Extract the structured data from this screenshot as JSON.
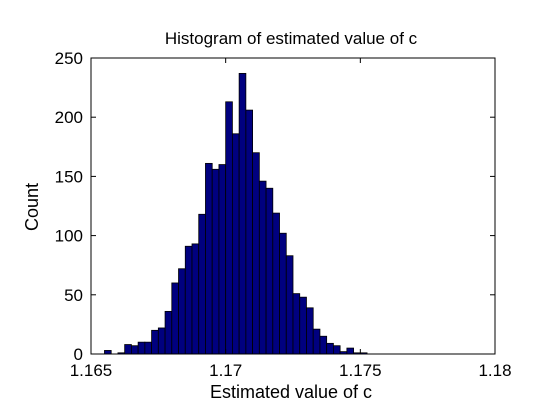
{
  "chart_data": {
    "type": "bar",
    "title": "Histogram of estimated value of c",
    "xlabel": "Estimated value of c",
    "ylabel": "Count",
    "xlim": [
      1.165,
      1.18
    ],
    "ylim": [
      0,
      250
    ],
    "xticks": [
      "1.165",
      "1.17",
      "1.175",
      "1.18"
    ],
    "xtick_values": [
      1.165,
      1.17,
      1.175,
      1.18
    ],
    "yticks": [
      "0",
      "50",
      "100",
      "150",
      "200",
      "250"
    ],
    "ytick_values": [
      0,
      50,
      100,
      150,
      200,
      250
    ],
    "grid": false,
    "bar_color": "#00007f",
    "bar_edge_color": "#000000",
    "bin_width": 0.00025,
    "bins": [
      {
        "x": 1.1655,
        "count": 3
      },
      {
        "x": 1.16575,
        "count": 0
      },
      {
        "x": 1.166,
        "count": 1
      },
      {
        "x": 1.16625,
        "count": 8
      },
      {
        "x": 1.1665,
        "count": 7
      },
      {
        "x": 1.16675,
        "count": 10
      },
      {
        "x": 1.167,
        "count": 10
      },
      {
        "x": 1.16725,
        "count": 20
      },
      {
        "x": 1.1675,
        "count": 22
      },
      {
        "x": 1.16775,
        "count": 36
      },
      {
        "x": 1.168,
        "count": 60
      },
      {
        "x": 1.16825,
        "count": 72
      },
      {
        "x": 1.1685,
        "count": 91
      },
      {
        "x": 1.16875,
        "count": 93
      },
      {
        "x": 1.169,
        "count": 118
      },
      {
        "x": 1.16925,
        "count": 161
      },
      {
        "x": 1.1695,
        "count": 156
      },
      {
        "x": 1.16975,
        "count": 160
      },
      {
        "x": 1.17,
        "count": 213
      },
      {
        "x": 1.17025,
        "count": 186
      },
      {
        "x": 1.1705,
        "count": 237
      },
      {
        "x": 1.17075,
        "count": 206
      },
      {
        "x": 1.171,
        "count": 170
      },
      {
        "x": 1.17125,
        "count": 146
      },
      {
        "x": 1.1715,
        "count": 140
      },
      {
        "x": 1.17175,
        "count": 119
      },
      {
        "x": 1.172,
        "count": 102
      },
      {
        "x": 1.17225,
        "count": 83
      },
      {
        "x": 1.1725,
        "count": 51
      },
      {
        "x": 1.17275,
        "count": 48
      },
      {
        "x": 1.173,
        "count": 39
      },
      {
        "x": 1.17325,
        "count": 21
      },
      {
        "x": 1.1735,
        "count": 15
      },
      {
        "x": 1.17375,
        "count": 9
      },
      {
        "x": 1.174,
        "count": 7
      },
      {
        "x": 1.17425,
        "count": 2
      },
      {
        "x": 1.1745,
        "count": 5
      },
      {
        "x": 1.17475,
        "count": 1
      },
      {
        "x": 1.175,
        "count": 1
      }
    ]
  }
}
